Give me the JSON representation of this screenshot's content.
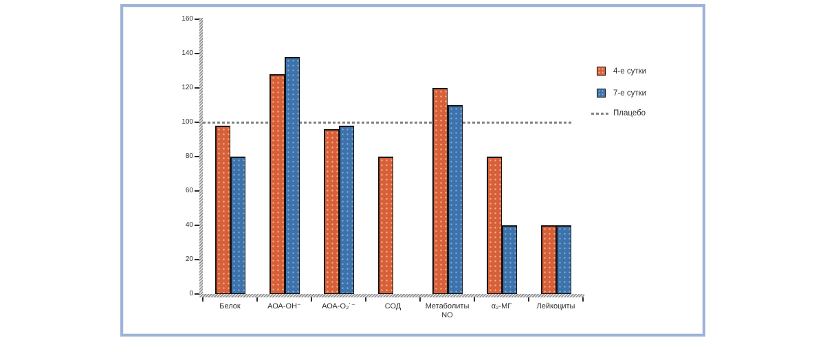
{
  "frame": {
    "border_color": "#9fb3d9"
  },
  "legend": {
    "items": [
      {
        "label": "4-е сутки",
        "marker": "square",
        "color": "#d7603c"
      },
      {
        "label": "7-е сутки",
        "marker": "square",
        "color": "#3e72aa"
      },
      {
        "label": "Плацебо",
        "marker": "dashes",
        "color": "#7f7f7f"
      }
    ]
  },
  "chart_data": {
    "type": "bar",
    "categories": [
      "Белок",
      "АОА-ОН⁻",
      "АОА-О₂˙⁻",
      "СОД",
      "Метаболиты NO",
      "α₂-МГ",
      "Лейкоциты"
    ],
    "series": [
      {
        "name": "4-е сутки",
        "color": "#d7603c",
        "values": [
          98,
          128,
          96,
          80,
          120,
          80,
          40
        ]
      },
      {
        "name": "7-е сутки",
        "color": "#3e72aa",
        "values": [
          80,
          138,
          98,
          null,
          110,
          40,
          40
        ]
      }
    ],
    "reference_line": {
      "label": "Плацебо",
      "value": 100,
      "style": "dashed",
      "color": "#7f7f7f"
    },
    "title": "",
    "xlabel": "",
    "ylabel": "",
    "ylim": [
      0,
      160
    ],
    "ytick_step": 20,
    "yticks": [
      "0",
      "20",
      "40",
      "60",
      "80",
      "100",
      "120",
      "140",
      "160"
    ],
    "grid": false,
    "legend_position": "right"
  }
}
